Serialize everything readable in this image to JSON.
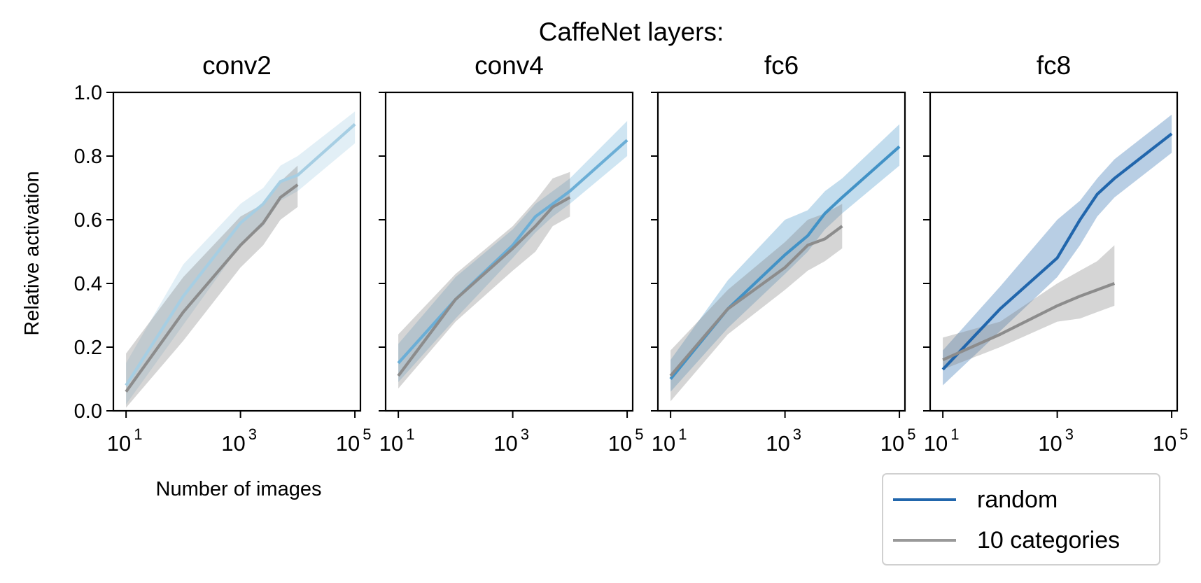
{
  "chart_data": {
    "type": "line",
    "suptitle": "CaffeNet layers:",
    "xlabel": "Number of images",
    "ylabel": "Relative activation",
    "xscale": "log",
    "xlim": [
      6,
      125000
    ],
    "ylim": [
      0,
      1.0
    ],
    "yticks": [
      "0.0",
      "0.2",
      "0.4",
      "0.6",
      "0.8",
      "1.0"
    ],
    "xticks": [
      {
        "value": 10,
        "base": "10",
        "exp": "1"
      },
      {
        "value": 1000,
        "base": "10",
        "exp": "3"
      },
      {
        "value": 100000,
        "base": "10",
        "exp": "5"
      }
    ],
    "grid": false,
    "legend_position": "lower-right, outside the panels",
    "legend": [
      {
        "label": "random",
        "color": "#2166ac"
      },
      {
        "label": "10 categories",
        "color": "#999999"
      }
    ],
    "panels": [
      {
        "title": "conv2",
        "random_color": "#a6cee3",
        "random": {
          "x": [
            10,
            100,
            1000,
            2500,
            5000,
            10000,
            100000
          ],
          "y": [
            0.08,
            0.36,
            0.59,
            0.65,
            0.72,
            0.74,
            0.9
          ],
          "lower": [
            0.02,
            0.27,
            0.52,
            0.58,
            0.66,
            0.69,
            0.84
          ],
          "upper": [
            0.15,
            0.46,
            0.65,
            0.7,
            0.77,
            0.8,
            0.94
          ]
        },
        "categories": {
          "x": [
            10,
            100,
            1000,
            2500,
            5000,
            10000
          ],
          "y": [
            0.06,
            0.31,
            0.52,
            0.59,
            0.67,
            0.71
          ],
          "lower": [
            0.01,
            0.22,
            0.45,
            0.52,
            0.6,
            0.64
          ],
          "upper": [
            0.18,
            0.42,
            0.61,
            0.65,
            0.72,
            0.77
          ]
        }
      },
      {
        "title": "conv4",
        "random_color": "#6baed6",
        "random": {
          "x": [
            10,
            100,
            1000,
            2500,
            5000,
            10000,
            100000
          ],
          "y": [
            0.15,
            0.35,
            0.52,
            0.61,
            0.65,
            0.69,
            0.85
          ],
          "lower": [
            0.09,
            0.29,
            0.48,
            0.56,
            0.61,
            0.65,
            0.8
          ],
          "upper": [
            0.21,
            0.42,
            0.57,
            0.65,
            0.69,
            0.73,
            0.91
          ]
        },
        "categories": {
          "x": [
            10,
            100,
            1000,
            2500,
            5000,
            10000
          ],
          "y": [
            0.11,
            0.35,
            0.51,
            0.58,
            0.64,
            0.67
          ],
          "lower": [
            0.07,
            0.28,
            0.44,
            0.5,
            0.58,
            0.61
          ],
          "upper": [
            0.24,
            0.43,
            0.58,
            0.66,
            0.73,
            0.75
          ]
        }
      },
      {
        "title": "fc6",
        "random_color": "#4292c6",
        "random": {
          "x": [
            10,
            100,
            1000,
            2500,
            5000,
            10000,
            100000
          ],
          "y": [
            0.1,
            0.32,
            0.49,
            0.55,
            0.62,
            0.67,
            0.83
          ],
          "lower": [
            0.06,
            0.26,
            0.43,
            0.5,
            0.57,
            0.62,
            0.77
          ],
          "upper": [
            0.16,
            0.41,
            0.6,
            0.63,
            0.69,
            0.73,
            0.9
          ]
        },
        "categories": {
          "x": [
            10,
            100,
            1000,
            2500,
            5000,
            10000
          ],
          "y": [
            0.11,
            0.32,
            0.45,
            0.52,
            0.54,
            0.58
          ],
          "lower": [
            0.03,
            0.24,
            0.38,
            0.44,
            0.47,
            0.51
          ],
          "upper": [
            0.19,
            0.38,
            0.53,
            0.6,
            0.62,
            0.65
          ]
        }
      },
      {
        "title": "fc8",
        "random_color": "#2166ac",
        "random": {
          "x": [
            10,
            100,
            1000,
            2500,
            5000,
            10000,
            100000
          ],
          "y": [
            0.13,
            0.32,
            0.48,
            0.6,
            0.68,
            0.73,
            0.87
          ],
          "lower": [
            0.08,
            0.25,
            0.42,
            0.52,
            0.61,
            0.67,
            0.81
          ],
          "upper": [
            0.19,
            0.39,
            0.6,
            0.66,
            0.73,
            0.79,
            0.93
          ]
        },
        "categories": {
          "x": [
            10,
            100,
            1000,
            2500,
            5000,
            10000
          ],
          "y": [
            0.16,
            0.24,
            0.33,
            0.36,
            0.38,
            0.4
          ],
          "lower": [
            0.13,
            0.2,
            0.28,
            0.29,
            0.31,
            0.33
          ],
          "upper": [
            0.23,
            0.28,
            0.4,
            0.44,
            0.47,
            0.52
          ]
        }
      }
    ]
  }
}
